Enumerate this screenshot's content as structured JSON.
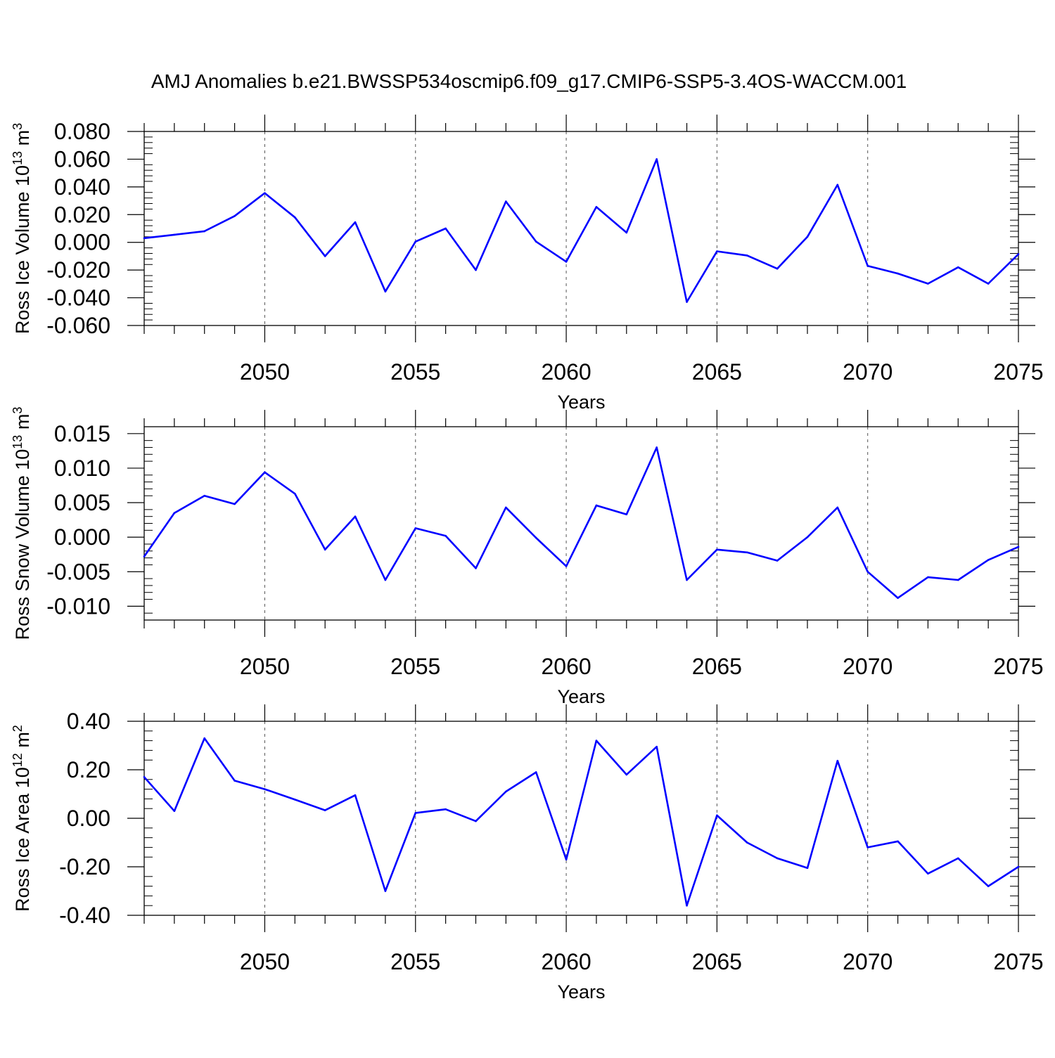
{
  "title": "AMJ Anomalies b.e21.BWSSP534oscmip6.f09_g17.CMIP6-SSP5-3.4OS-WACCM.001",
  "colors": {
    "line": "#0000ff",
    "axis": "#000000",
    "gridline": "#555555"
  },
  "chart_data": [
    {
      "type": "line",
      "xlabel": "Years",
      "ylabel": {
        "prefix": "Ross Ice Volume 10",
        "exp": "13",
        "unit": " m",
        "unit_exp": "3"
      },
      "xlim": [
        2046,
        2075
      ],
      "ylim": [
        -0.06,
        0.08
      ],
      "xticks": [
        2050,
        2055,
        2060,
        2065,
        2070,
        2075
      ],
      "yticks": [
        -0.06,
        -0.04,
        -0.02,
        0.0,
        0.02,
        0.04,
        0.06,
        0.08
      ],
      "ytick_labels": [
        "-0.060",
        "-0.040",
        "-0.020",
        "0.000",
        "0.020",
        "0.040",
        "0.060",
        "0.080"
      ],
      "grid": "vertical dashed at major x ticks",
      "x": [
        2046,
        2047,
        2048,
        2049,
        2050,
        2051,
        2052,
        2053,
        2054,
        2055,
        2056,
        2057,
        2058,
        2059,
        2060,
        2061,
        2062,
        2063,
        2064,
        2065,
        2066,
        2067,
        2068,
        2069,
        2070,
        2071,
        2072,
        2073,
        2074,
        2075
      ],
      "y": [
        0.003,
        0.0055,
        0.008,
        0.019,
        0.0355,
        0.018,
        -0.01,
        0.0145,
        -0.0355,
        0.0005,
        0.01,
        -0.02,
        0.0295,
        0.0005,
        -0.014,
        0.0255,
        0.007,
        0.06,
        -0.043,
        -0.0065,
        -0.0095,
        -0.019,
        0.004,
        0.0415,
        -0.017,
        -0.0225,
        -0.0298,
        -0.018,
        -0.0298,
        -0.0085
      ]
    },
    {
      "type": "line",
      "xlabel": "Years",
      "ylabel": {
        "prefix": "Ross Snow Volume 10",
        "exp": "13",
        "unit": " m",
        "unit_exp": "3"
      },
      "xlim": [
        2046,
        2075
      ],
      "ylim": [
        -0.012,
        0.016
      ],
      "xticks": [
        2050,
        2055,
        2060,
        2065,
        2070,
        2075
      ],
      "yticks": [
        -0.01,
        -0.005,
        0.0,
        0.005,
        0.01,
        0.015
      ],
      "ytick_labels": [
        "-0.010",
        "-0.005",
        "0.000",
        "0.005",
        "0.010",
        "0.015"
      ],
      "grid": "vertical dashed at major x ticks",
      "x": [
        2046,
        2047,
        2048,
        2049,
        2050,
        2051,
        2052,
        2053,
        2054,
        2055,
        2056,
        2057,
        2058,
        2059,
        2060,
        2061,
        2062,
        2063,
        2064,
        2065,
        2066,
        2067,
        2068,
        2069,
        2070,
        2071,
        2072,
        2073,
        2074,
        2075
      ],
      "y": [
        -0.0028,
        0.0035,
        0.006,
        0.0048,
        0.0094,
        0.0063,
        -0.0018,
        0.003,
        -0.0062,
        0.0013,
        0.0002,
        -0.0045,
        0.0043,
        -0.0001,
        -0.0042,
        0.0046,
        0.0033,
        0.013,
        -0.0062,
        -0.0018,
        -0.0022,
        -0.0034,
        0.0,
        0.0043,
        -0.005,
        -0.0088,
        -0.0058,
        -0.0062,
        -0.0033,
        -0.0014
      ]
    },
    {
      "type": "line",
      "xlabel": "Years",
      "ylabel": {
        "prefix": "Ross Ice Area 10",
        "exp": "12",
        "unit": " m",
        "unit_exp": "2"
      },
      "xlim": [
        2046,
        2075
      ],
      "ylim": [
        -0.4,
        0.4
      ],
      "xticks": [
        2050,
        2055,
        2060,
        2065,
        2070,
        2075
      ],
      "yticks": [
        -0.4,
        -0.2,
        0.0,
        0.2,
        0.4
      ],
      "ytick_labels": [
        "-0.40",
        "-0.20",
        "0.00",
        "0.20",
        "0.40"
      ],
      "grid": "vertical dashed at major x ticks",
      "x": [
        2046,
        2047,
        2048,
        2049,
        2050,
        2051,
        2052,
        2053,
        2054,
        2055,
        2056,
        2057,
        2058,
        2059,
        2060,
        2061,
        2062,
        2063,
        2064,
        2065,
        2066,
        2067,
        2068,
        2069,
        2070,
        2071,
        2072,
        2073,
        2074,
        2075
      ],
      "y": [
        0.17,
        0.03,
        0.33,
        0.155,
        0.12,
        0.077,
        0.033,
        0.095,
        -0.3,
        0.022,
        0.037,
        -0.012,
        0.11,
        0.19,
        -0.17,
        0.32,
        0.18,
        0.295,
        -0.36,
        0.012,
        -0.1,
        -0.165,
        -0.205,
        0.237,
        -0.12,
        -0.095,
        -0.228,
        -0.165,
        -0.28,
        -0.2
      ]
    }
  ]
}
